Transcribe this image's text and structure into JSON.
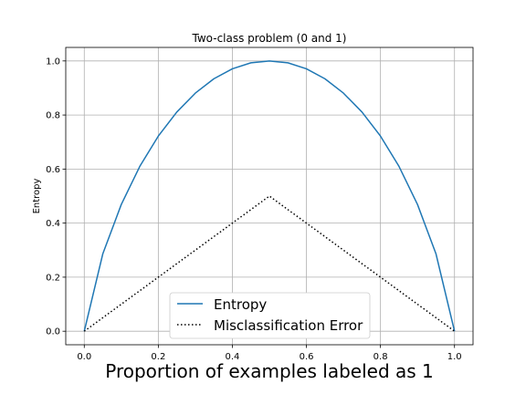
{
  "chart_data": {
    "type": "line",
    "title": "Two-class problem (0 and 1)",
    "xlabel": "Proportion of examples labeled as 1",
    "ylabel": "Entropy",
    "xlim": [
      -0.05,
      1.05
    ],
    "ylim": [
      -0.05,
      1.05
    ],
    "xticks": [
      0.0,
      0.2,
      0.4,
      0.6,
      0.8,
      1.0
    ],
    "xtick_labels": [
      "0.0",
      "0.2",
      "0.4",
      "0.6",
      "0.8",
      "1.0"
    ],
    "yticks": [
      0.0,
      0.2,
      0.4,
      0.6,
      0.8,
      1.0
    ],
    "ytick_labels": [
      "0.0",
      "0.2",
      "0.4",
      "0.6",
      "0.8",
      "1.0"
    ],
    "grid": true,
    "legend": "lower-center",
    "x": [
      0.0,
      0.05,
      0.1,
      0.15,
      0.2,
      0.25,
      0.3,
      0.35,
      0.4,
      0.45,
      0.5,
      0.55,
      0.6,
      0.65,
      0.7,
      0.75,
      0.8,
      0.85,
      0.9,
      0.95,
      1.0
    ],
    "series": [
      {
        "name": "Entropy",
        "color": "#1f77b4",
        "style": "solid",
        "values": [
          0.0,
          0.286,
          0.469,
          0.61,
          0.722,
          0.811,
          0.881,
          0.934,
          0.971,
          0.993,
          1.0,
          0.993,
          0.971,
          0.934,
          0.881,
          0.811,
          0.722,
          0.61,
          0.469,
          0.286,
          0.0
        ]
      },
      {
        "name": "Misclassification Error",
        "color": "#000000",
        "style": "dotted",
        "values": [
          0.0,
          0.05,
          0.1,
          0.15,
          0.2,
          0.25,
          0.3,
          0.35,
          0.4,
          0.45,
          0.5,
          0.45,
          0.4,
          0.35,
          0.3,
          0.25,
          0.2,
          0.15,
          0.1,
          0.05,
          0.0
        ]
      }
    ]
  }
}
